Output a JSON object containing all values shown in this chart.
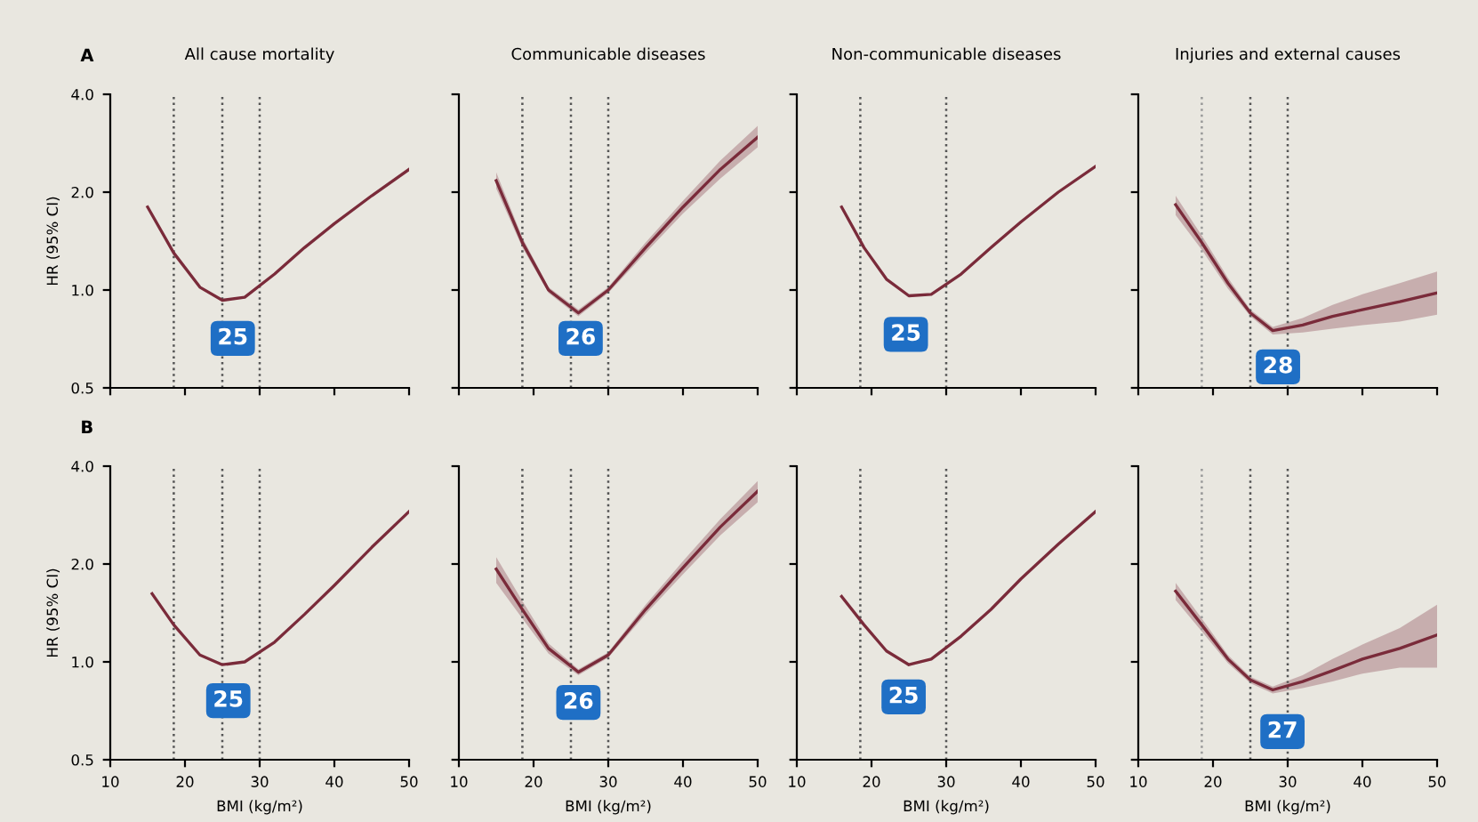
{
  "chart_data": [
    {
      "type": "line",
      "title": "All cause mortality",
      "ylabel": "HR (95% CI)",
      "annotations": [
        "A",
        {
          "text": "25",
          "x": 26.4,
          "y": 0.71
        }
      ],
      "log": "y",
      "xlim": [
        10,
        50
      ],
      "xticks": [
        10,
        20,
        30,
        40,
        50
      ],
      "ylim": [
        0.5,
        4.0
      ],
      "yticks": [
        0.5,
        {
          "value": 1,
          "label": "1.0"
        },
        {
          "value": 2,
          "label": "2.0"
        },
        {
          "value": 4,
          "label": "4.0"
        }
      ],
      "tick_labels": "y",
      "grid": false,
      "ref_lines": [
        {
          "axis": "x",
          "value": 18.5,
          "line_style": "dotted",
          "color": "#555555"
        },
        {
          "axis": "x",
          "value": 25,
          "line_style": "dotted",
          "color": "#555555"
        },
        {
          "axis": "x",
          "value": 30,
          "line_style": "dotted",
          "color": "#555555"
        }
      ],
      "series": [
        {
          "color": "#7a2b3a",
          "x": [
            15,
            18.5,
            22,
            25,
            28,
            32,
            36,
            40,
            45,
            50
          ],
          "values": [
            1.8,
            1.3,
            1.02,
            0.93,
            0.95,
            1.12,
            1.35,
            1.6,
            1.95,
            2.35
          ]
        }
      ]
    },
    {
      "type": "line",
      "title": "Communicable diseases",
      "annotations": [
        {
          "text": "26",
          "x": 26.3,
          "y": 0.71
        }
      ],
      "log": "y",
      "xlim": [
        10,
        50
      ],
      "xticks": [
        10,
        20,
        30,
        40,
        50
      ],
      "ylim": [
        0.5,
        4.0
      ],
      "yticks": [
        {
          "value": 0.5,
          "label": null
        },
        {
          "value": 1,
          "label": null
        },
        {
          "value": 2,
          "label": null
        },
        {
          "value": 4,
          "label": null
        }
      ],
      "tick_labels": false,
      "grid": false,
      "ref_lines": [
        {
          "axis": "x",
          "value": 18.5,
          "line_style": "dotted",
          "color": "#555555"
        },
        {
          "axis": "x",
          "value": 25,
          "line_style": "dotted",
          "color": "#555555"
        },
        {
          "axis": "x",
          "value": 30,
          "line_style": "dotted",
          "color": "#555555"
        }
      ],
      "series": [
        {
          "color": "#7a2b3a",
          "x": [
            15,
            18.5,
            22,
            26,
            30,
            35,
            40,
            45,
            50
          ],
          "values": [
            2.17,
            1.4,
            1.0,
            0.85,
            1.0,
            1.35,
            1.8,
            2.35,
            2.95
          ],
          "lower": [
            2.05,
            1.35,
            0.98,
            0.83,
            0.98,
            1.3,
            1.72,
            2.2,
            2.75
          ],
          "upper": [
            2.3,
            1.45,
            1.02,
            0.87,
            1.02,
            1.4,
            1.88,
            2.5,
            3.2
          ]
        }
      ]
    },
    {
      "type": "line",
      "title": "Non-communicable diseases",
      "annotations": [
        {
          "text": "25",
          "x": 24.6,
          "y": 0.73
        }
      ],
      "log": "y",
      "xlim": [
        10,
        50
      ],
      "xticks": [
        10,
        20,
        30,
        40,
        50
      ],
      "ylim": [
        0.5,
        4.0
      ],
      "yticks": [
        {
          "value": 0.5,
          "label": null
        },
        {
          "value": 1,
          "label": null
        },
        {
          "value": 2,
          "label": null
        },
        {
          "value": 4,
          "label": null
        }
      ],
      "tick_labels": false,
      "grid": false,
      "ref_lines": [
        {
          "axis": "x",
          "value": 18.5,
          "line_style": "dotted",
          "color": "#555555"
        },
        {
          "axis": "x",
          "value": 30,
          "line_style": "dotted",
          "color": "#555555"
        }
      ],
      "series": [
        {
          "color": "#7a2b3a",
          "x": [
            16,
            19,
            22,
            25,
            28,
            32,
            36,
            40,
            45,
            50
          ],
          "values": [
            1.8,
            1.35,
            1.08,
            0.96,
            0.97,
            1.12,
            1.35,
            1.62,
            2.0,
            2.4
          ]
        }
      ]
    },
    {
      "type": "line",
      "title": "Injuries and external causes",
      "annotations": [
        {
          "text": "28",
          "x": 28.7,
          "y": 0.58
        }
      ],
      "log": "y",
      "xlim": [
        10,
        50
      ],
      "xticks": [
        10,
        20,
        30,
        40,
        50
      ],
      "ylim": [
        0.5,
        4.0
      ],
      "yticks": [
        {
          "value": 0.5,
          "label": null
        },
        {
          "value": 1,
          "label": null
        },
        {
          "value": 2,
          "label": null
        },
        {
          "value": 4,
          "label": null
        }
      ],
      "tick_labels": false,
      "grid": false,
      "ref_lines": [
        {
          "axis": "x",
          "value": 18.5,
          "line_style": "dotted",
          "color": "#999999"
        },
        {
          "axis": "x",
          "value": 25,
          "line_style": "dotted",
          "color": "#555555"
        },
        {
          "axis": "x",
          "value": 30,
          "line_style": "dotted",
          "color": "#555555"
        }
      ],
      "series": [
        {
          "color": "#7a2b3a",
          "x": [
            15,
            18.5,
            22,
            25,
            28,
            32,
            36,
            40,
            45,
            50
          ],
          "values": [
            1.83,
            1.4,
            1.05,
            0.85,
            0.75,
            0.78,
            0.83,
            0.87,
            0.92,
            0.98
          ],
          "lower": [
            1.7,
            1.33,
            1.01,
            0.83,
            0.73,
            0.74,
            0.76,
            0.78,
            0.8,
            0.84
          ],
          "upper": [
            1.95,
            1.47,
            1.09,
            0.87,
            0.77,
            0.82,
            0.9,
            0.97,
            1.05,
            1.14
          ]
        }
      ]
    },
    {
      "type": "line",
      "xlabel": "BMI (kg/m²)",
      "ylabel": "HR (95% CI)",
      "annotations": [
        "B",
        {
          "text": "25",
          "x": 25.8,
          "y": 0.76
        }
      ],
      "log": "y",
      "xlim": [
        10,
        50
      ],
      "xticks": [
        10,
        20,
        30,
        40,
        50
      ],
      "ylim": [
        0.5,
        4.0
      ],
      "yticks": [
        0.5,
        {
          "value": 1,
          "label": "1.0"
        },
        {
          "value": 2,
          "label": "2.0"
        },
        {
          "value": 4,
          "label": "4.0"
        }
      ],
      "grid": false,
      "ref_lines": [
        {
          "axis": "x",
          "value": 18.5,
          "line_style": "dotted",
          "color": "#555555"
        },
        {
          "axis": "x",
          "value": 25,
          "line_style": "dotted",
          "color": "#555555"
        },
        {
          "axis": "x",
          "value": 30,
          "line_style": "dotted",
          "color": "#555555"
        }
      ],
      "series": [
        {
          "color": "#7a2b3a",
          "x": [
            15.6,
            18.5,
            22,
            25,
            28,
            32,
            36,
            40,
            45,
            50
          ],
          "values": [
            1.62,
            1.3,
            1.05,
            0.98,
            1.0,
            1.15,
            1.4,
            1.72,
            2.25,
            2.9
          ]
        }
      ]
    },
    {
      "type": "line",
      "xlabel": "BMI (kg/m²)",
      "annotations": [
        {
          "text": "26",
          "x": 26,
          "y": 0.75
        }
      ],
      "log": "y",
      "xlim": [
        10,
        50
      ],
      "xticks": [
        10,
        20,
        30,
        40,
        50
      ],
      "ylim": [
        0.5,
        4.0
      ],
      "yticks": [
        {
          "value": 0.5,
          "label": null
        },
        {
          "value": 1,
          "label": null
        },
        {
          "value": 2,
          "label": null
        },
        {
          "value": 4,
          "label": null
        }
      ],
      "tick_labels": "x",
      "grid": false,
      "ref_lines": [
        {
          "axis": "x",
          "value": 18.5,
          "line_style": "dotted",
          "color": "#555555"
        },
        {
          "axis": "x",
          "value": 25,
          "line_style": "dotted",
          "color": "#555555"
        },
        {
          "axis": "x",
          "value": 30,
          "line_style": "dotted",
          "color": "#555555"
        }
      ],
      "series": [
        {
          "color": "#7a2b3a",
          "x": [
            15,
            18.5,
            22,
            26,
            30,
            35,
            40,
            45,
            50
          ],
          "values": [
            1.93,
            1.45,
            1.1,
            0.93,
            1.05,
            1.45,
            1.95,
            2.6,
            3.35
          ],
          "lower": [
            1.75,
            1.36,
            1.06,
            0.91,
            1.03,
            1.4,
            1.86,
            2.45,
            3.1
          ],
          "upper": [
            2.1,
            1.54,
            1.14,
            0.95,
            1.07,
            1.5,
            2.04,
            2.75,
            3.6
          ]
        }
      ]
    },
    {
      "type": "line",
      "xlabel": "BMI (kg/m²)",
      "annotations": [
        {
          "text": "25",
          "x": 24.3,
          "y": 0.78
        }
      ],
      "log": "y",
      "xlim": [
        10,
        50
      ],
      "xticks": [
        10,
        20,
        30,
        40,
        50
      ],
      "ylim": [
        0.5,
        4.0
      ],
      "yticks": [
        {
          "value": 0.5,
          "label": null
        },
        {
          "value": 1,
          "label": null
        },
        {
          "value": 2,
          "label": null
        },
        {
          "value": 4,
          "label": null
        }
      ],
      "tick_labels": "x",
      "grid": false,
      "ref_lines": [
        {
          "axis": "x",
          "value": 18.5,
          "line_style": "dotted",
          "color": "#555555"
        },
        {
          "axis": "x",
          "value": 30,
          "line_style": "dotted",
          "color": "#555555"
        }
      ],
      "series": [
        {
          "color": "#7a2b3a",
          "x": [
            16,
            19,
            22,
            25,
            28,
            32,
            36,
            40,
            45,
            50
          ],
          "values": [
            1.59,
            1.3,
            1.08,
            0.98,
            1.02,
            1.2,
            1.45,
            1.8,
            2.3,
            2.9
          ]
        }
      ]
    },
    {
      "type": "line",
      "xlabel": "BMI (kg/m²)",
      "annotations": [
        {
          "text": "27",
          "x": 29.3,
          "y": 0.61
        }
      ],
      "log": "y",
      "xlim": [
        10,
        50
      ],
      "xticks": [
        10,
        20,
        30,
        40,
        50
      ],
      "ylim": [
        0.5,
        4.0
      ],
      "yticks": [
        {
          "value": 0.5,
          "label": null
        },
        {
          "value": 1,
          "label": null
        },
        {
          "value": 2,
          "label": null
        },
        {
          "value": 4,
          "label": null
        }
      ],
      "tick_labels": "x",
      "grid": false,
      "ref_lines": [
        {
          "axis": "x",
          "value": 18.5,
          "line_style": "dotted",
          "color": "#999999"
        },
        {
          "axis": "x",
          "value": 25,
          "line_style": "dotted",
          "color": "#555555"
        },
        {
          "axis": "x",
          "value": 30,
          "line_style": "dotted",
          "color": "#555555"
        }
      ],
      "series": [
        {
          "color": "#7a2b3a",
          "x": [
            15,
            18.5,
            22,
            25,
            28,
            32,
            36,
            40,
            45,
            50
          ],
          "values": [
            1.65,
            1.3,
            1.02,
            0.88,
            0.82,
            0.87,
            0.94,
            1.02,
            1.1,
            1.21
          ],
          "lower": [
            1.55,
            1.24,
            0.99,
            0.86,
            0.8,
            0.83,
            0.87,
            0.92,
            0.96,
            0.96
          ],
          "upper": [
            1.75,
            1.36,
            1.05,
            0.9,
            0.84,
            0.91,
            1.02,
            1.13,
            1.27,
            1.5
          ]
        }
      ]
    }
  ]
}
